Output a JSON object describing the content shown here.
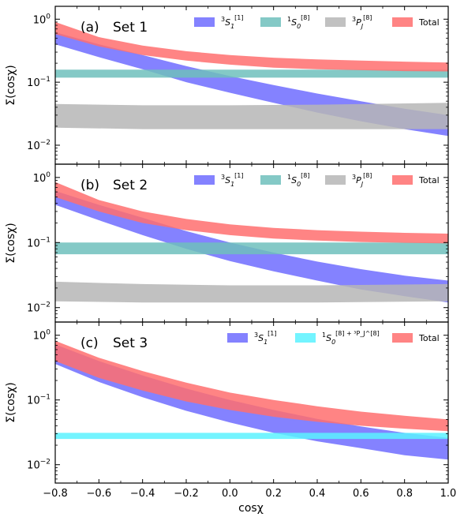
{
  "figure": {
    "xlabel": "cosχ",
    "ylabel": "Σ(cosχ)",
    "x_ticks": [
      "−0.8",
      "−0.6",
      "−0.4",
      "−0.2",
      "0.0",
      "0.2",
      "0.4",
      "0.6",
      "0.8",
      "1.0"
    ]
  },
  "chart_data": [
    {
      "type": "area",
      "panel_label": "(a)",
      "title": "Set 1",
      "xlim": [
        -0.8,
        1.0
      ],
      "ylim": [
        0.005,
        1.6
      ],
      "yscale": "log",
      "xlabel": "cosχ",
      "ylabel": "Σ(cosχ)",
      "y_ticks": [
        0.01,
        0.1,
        1
      ],
      "y_tick_labels": [
        [
          "10",
          "−2"
        ],
        [
          "10",
          "−1"
        ],
        [
          "10",
          "0"
        ]
      ],
      "legend": "top",
      "series": [
        {
          "name": "³S₁^[1]",
          "legend_parts": [
            "3",
            "S",
            "1",
            "[1]"
          ],
          "color": "#6f6cff",
          "x": [
            -0.8,
            -0.6,
            -0.4,
            -0.2,
            0.0,
            0.2,
            0.4,
            0.6,
            0.8,
            1.0
          ],
          "low": [
            0.4,
            0.25,
            0.16,
            0.1,
            0.068,
            0.047,
            0.033,
            0.024,
            0.018,
            0.014
          ],
          "high": [
            0.62,
            0.4,
            0.27,
            0.18,
            0.125,
            0.09,
            0.066,
            0.05,
            0.038,
            0.03
          ]
        },
        {
          "name": "¹S₀^[8]",
          "legend_parts": [
            "1",
            "S",
            "0",
            "[8]"
          ],
          "color": "#6fc0bc",
          "x": [
            -0.8,
            1.0
          ],
          "low": [
            0.118,
            0.118
          ],
          "high": [
            0.158,
            0.158
          ]
        },
        {
          "name": "³P_J^[8]",
          "legend_parts": [
            "3",
            "P",
            "J",
            "[8]"
          ],
          "color": "#b6b6b6",
          "x": [
            -0.8,
            -0.4,
            0.0,
            0.4,
            1.0
          ],
          "low": [
            0.019,
            0.018,
            0.018,
            0.018,
            0.018
          ],
          "high": [
            0.045,
            0.043,
            0.043,
            0.044,
            0.047
          ]
        },
        {
          "name": "Total",
          "legend_parts": [
            "",
            "Total",
            "",
            ""
          ],
          "color": "#ff6e6e",
          "x": [
            -0.8,
            -0.6,
            -0.4,
            -0.2,
            0.0,
            0.2,
            0.4,
            0.6,
            0.8,
            1.0
          ],
          "low": [
            0.58,
            0.37,
            0.27,
            0.22,
            0.19,
            0.17,
            0.16,
            0.155,
            0.15,
            0.148
          ],
          "high": [
            0.9,
            0.52,
            0.38,
            0.31,
            0.27,
            0.245,
            0.23,
            0.22,
            0.212,
            0.205
          ]
        }
      ]
    },
    {
      "type": "area",
      "panel_label": "(b)",
      "title": "Set 2",
      "xlim": [
        -0.8,
        1.0
      ],
      "ylim": [
        0.006,
        1.6
      ],
      "yscale": "log",
      "xlabel": "cosχ",
      "ylabel": "Σ(cosχ)",
      "y_ticks": [
        0.01,
        0.1,
        1
      ],
      "y_tick_labels": [
        [
          "10",
          "−2"
        ],
        [
          "10",
          "−1"
        ],
        [
          "10",
          "0"
        ]
      ],
      "legend": "top",
      "series": [
        {
          "name": "³S₁^[1]",
          "legend_parts": [
            "3",
            "S",
            "1",
            "[1]"
          ],
          "color": "#6f6cff",
          "x": [
            -0.8,
            -0.6,
            -0.4,
            -0.2,
            0.0,
            0.2,
            0.4,
            0.6,
            0.8,
            1.0
          ],
          "low": [
            0.38,
            0.22,
            0.13,
            0.08,
            0.052,
            0.036,
            0.026,
            0.019,
            0.015,
            0.012
          ],
          "high": [
            0.62,
            0.38,
            0.24,
            0.15,
            0.1,
            0.07,
            0.051,
            0.039,
            0.031,
            0.026
          ]
        },
        {
          "name": "¹S₀^[8]",
          "legend_parts": [
            "1",
            "S",
            "0",
            "[8]"
          ],
          "color": "#6fc0bc",
          "x": [
            -0.8,
            1.0
          ],
          "low": [
            0.066,
            0.066
          ],
          "high": [
            0.1,
            0.1
          ]
        },
        {
          "name": "³P_J^[8]",
          "legend_parts": [
            "3",
            "P",
            "J",
            "[8]"
          ],
          "color": "#b6b6b6",
          "x": [
            -0.8,
            -0.4,
            0.0,
            0.4,
            1.0
          ],
          "low": [
            0.0125,
            0.012,
            0.012,
            0.012,
            0.0125
          ],
          "high": [
            0.025,
            0.023,
            0.022,
            0.022,
            0.023
          ]
        },
        {
          "name": "Total",
          "legend_parts": [
            "",
            "Total",
            "",
            ""
          ],
          "color": "#ff6e6e",
          "x": [
            -0.8,
            -0.6,
            -0.4,
            -0.2,
            0.0,
            0.2,
            0.4,
            0.6,
            0.8,
            1.0
          ],
          "low": [
            0.5,
            0.3,
            0.2,
            0.155,
            0.13,
            0.115,
            0.107,
            0.102,
            0.099,
            0.097
          ],
          "high": [
            0.85,
            0.45,
            0.3,
            0.23,
            0.19,
            0.168,
            0.155,
            0.147,
            0.141,
            0.137
          ]
        }
      ]
    },
    {
      "type": "area",
      "panel_label": "(c)",
      "title": "Set 3",
      "xlim": [
        -0.8,
        1.0
      ],
      "ylim": [
        0.0052,
        1.6
      ],
      "yscale": "log",
      "xlabel": "cosχ",
      "ylabel": "Σ(cosχ)",
      "y_ticks": [
        0.01,
        0.1,
        1
      ],
      "y_tick_labels": [
        [
          "10",
          "−2"
        ],
        [
          "10",
          "−1"
        ],
        [
          "10",
          "0"
        ]
      ],
      "legend": "top",
      "series": [
        {
          "name": "³S₁^[1]",
          "legend_parts": [
            "3",
            "S",
            "1",
            "[1]"
          ],
          "color": "#6f6cff",
          "x": [
            -0.8,
            -0.6,
            -0.4,
            -0.2,
            0.0,
            0.2,
            0.4,
            0.6,
            0.8,
            1.0
          ],
          "low": [
            0.36,
            0.19,
            0.11,
            0.068,
            0.045,
            0.031,
            0.023,
            0.018,
            0.014,
            0.012
          ],
          "high": [
            0.72,
            0.4,
            0.24,
            0.15,
            0.1,
            0.07,
            0.051,
            0.039,
            0.031,
            0.026
          ]
        },
        {
          "name": "¹S₀^[8] + ³P_J^[8]",
          "legend_parts": [
            "1",
            "S",
            "0",
            "[8] + ³P_J^[8]"
          ],
          "color": "#5af2ff",
          "x": [
            -0.8,
            1.0
          ],
          "low": [
            0.025,
            0.025
          ],
          "high": [
            0.031,
            0.031
          ]
        },
        {
          "name": "Total",
          "legend_parts": [
            "",
            "Total",
            "",
            ""
          ],
          "color": "#ff6e6e",
          "x": [
            -0.8,
            -0.6,
            -0.4,
            -0.2,
            0.0,
            0.2,
            0.4,
            0.6,
            0.8,
            1.0
          ],
          "low": [
            0.4,
            0.22,
            0.14,
            0.095,
            0.07,
            0.055,
            0.046,
            0.04,
            0.036,
            0.033
          ],
          "high": [
            0.82,
            0.45,
            0.28,
            0.185,
            0.13,
            0.1,
            0.08,
            0.066,
            0.057,
            0.05
          ]
        }
      ]
    }
  ]
}
